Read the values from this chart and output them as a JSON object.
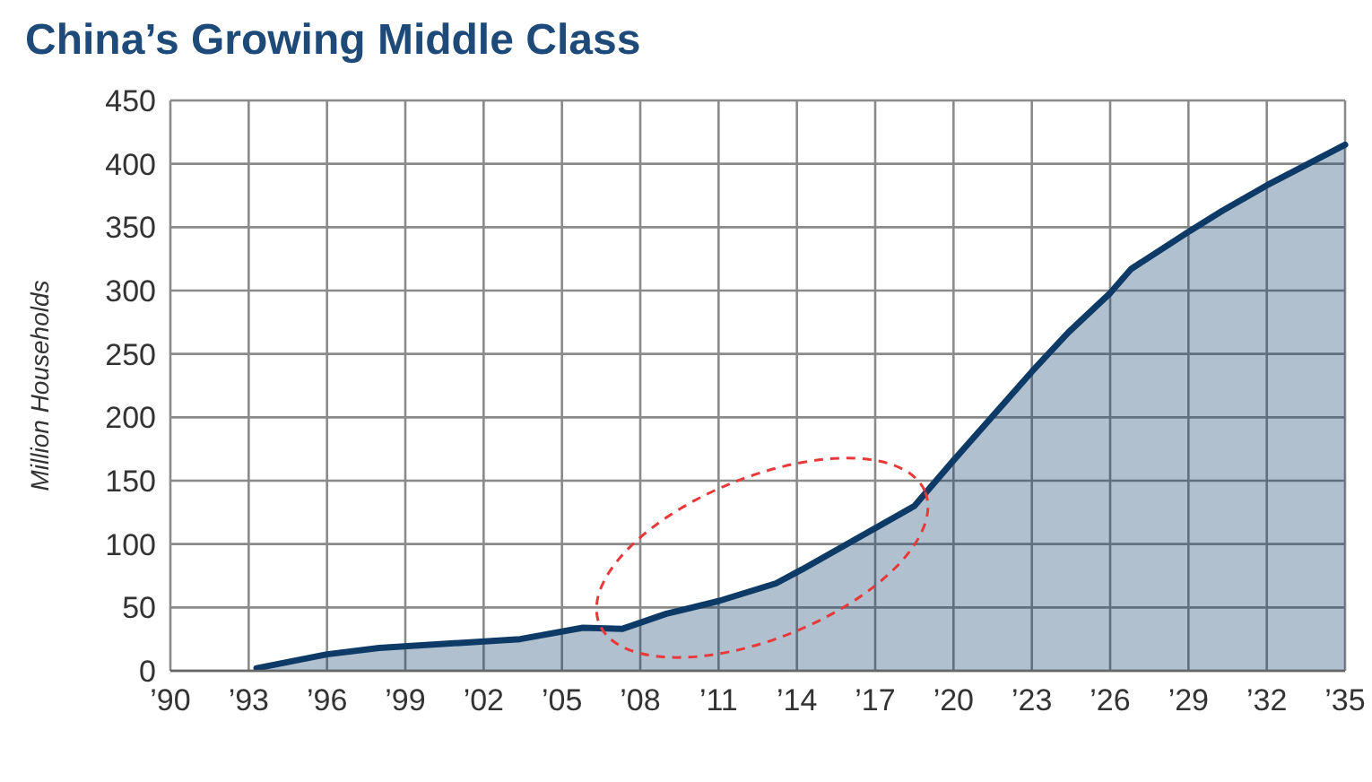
{
  "chart_data": {
    "type": "area",
    "title": "China’s Growing Middle Class",
    "ylabel": "Million Households",
    "x": [
      1993.3,
      1996,
      1998,
      2003.4,
      2005.8,
      2007.3,
      2009,
      2011,
      2013.2,
      2014.2,
      2018.5,
      2020,
      2023,
      2024.4,
      2026,
      2026.8,
      2028.9,
      2030.3,
      2032,
      2035
    ],
    "series": [
      {
        "color": "#0d3a66",
        "values": [
          2,
          13,
          18,
          25,
          34,
          33,
          45,
          55,
          69,
          80,
          130,
          166,
          236,
          267,
          298,
          317,
          345,
          363,
          383,
          415
        ]
      }
    ],
    "xlim": [
      1990,
      2035
    ],
    "xticks": [
      {
        "value": 1990,
        "label": "’90"
      },
      {
        "value": 1993,
        "label": "’93"
      },
      {
        "value": 1996,
        "label": "’96"
      },
      {
        "value": 1999,
        "label": "’99"
      },
      {
        "value": 2002,
        "label": "’02"
      },
      {
        "value": 2005,
        "label": "’05"
      },
      {
        "value": 2008,
        "label": "’08"
      },
      {
        "value": 2011,
        "label": "’11"
      },
      {
        "value": 2014,
        "label": "’14"
      },
      {
        "value": 2017,
        "label": "’17"
      },
      {
        "value": 2020,
        "label": "’20"
      },
      {
        "value": 2023,
        "label": "’23"
      },
      {
        "value": 2026,
        "label": "’26"
      },
      {
        "value": 2029,
        "label": "’29"
      },
      {
        "value": 2032,
        "label": "’32"
      },
      {
        "value": 2035,
        "label": "’35"
      }
    ],
    "ylim": [
      0,
      450
    ],
    "yticks": [
      0,
      50,
      100,
      150,
      200,
      250,
      300,
      350,
      400,
      450
    ],
    "grid": true
  }
}
